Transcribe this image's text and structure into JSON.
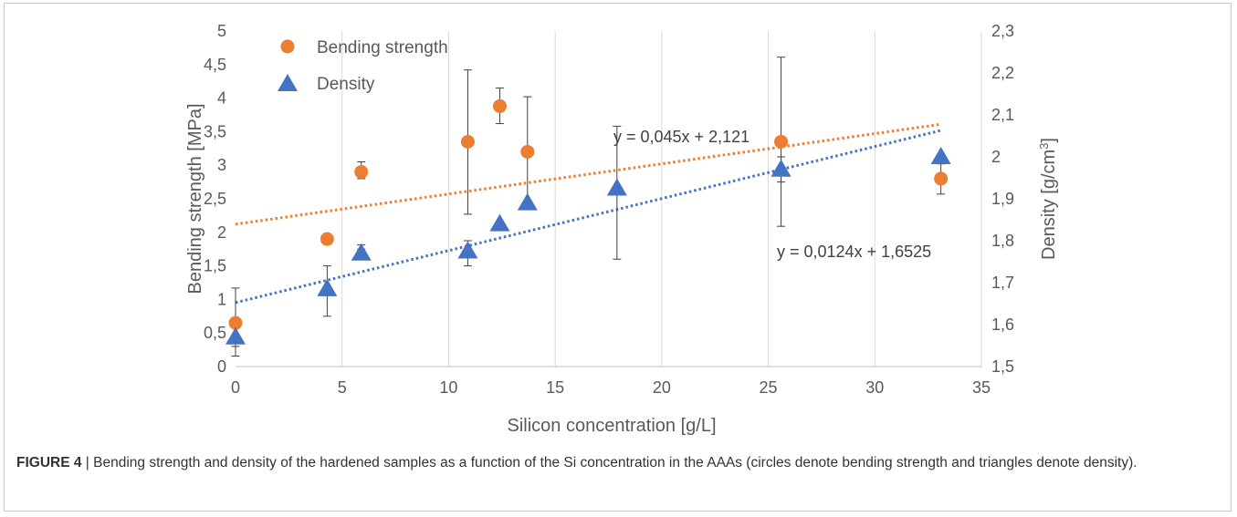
{
  "chart_data": {
    "type": "scatter",
    "xlabel": "Silicon concentration [g/L]",
    "ylabel_left": "Bending strength [MPa]",
    "ylabel_right": "Density [g/cm³]",
    "xlim": [
      0,
      35
    ],
    "ylim_left": [
      0,
      5
    ],
    "ylim_right": [
      1.5,
      2.3
    ],
    "x_ticks": [
      0,
      5,
      10,
      15,
      20,
      25,
      30,
      35
    ],
    "y_left_ticks": [
      "0",
      "0,5",
      "1",
      "1,5",
      "2",
      "2,5",
      "3",
      "3,5",
      "4",
      "4,5",
      "5"
    ],
    "y_right_ticks": [
      "1,5",
      "1,6",
      "1,7",
      "1,8",
      "1,9",
      "2",
      "2,1",
      "2,2",
      "2,3"
    ],
    "grid": "vertical",
    "legend": "top-left",
    "series": [
      {
        "name": "Bending strength",
        "axis": "left",
        "marker": "circle",
        "color": "#ED7D31",
        "x": [
          0,
          4.3,
          5.9,
          10.9,
          12.4,
          13.7,
          25.6,
          33.1
        ],
        "y": [
          0.65,
          1.9,
          2.9,
          3.35,
          3.88,
          3.2,
          3.35,
          2.8
        ],
        "y_low": [
          0.3,
          null,
          2.8,
          2.27,
          3.62,
          2.37,
          2.09,
          2.57
        ],
        "y_high": [
          1.17,
          null,
          3.05,
          4.42,
          4.15,
          4.02,
          4.61,
          3.02
        ]
      },
      {
        "name": "Density",
        "axis": "right",
        "marker": "triangle",
        "color": "#4472C4",
        "x": [
          0,
          4.3,
          5.9,
          10.9,
          12.4,
          13.7,
          17.9,
          25.6,
          33.1
        ],
        "y": [
          1.57,
          1.685,
          1.77,
          1.775,
          1.84,
          1.89,
          1.925,
          1.97,
          2.0
        ],
        "y_low": [
          1.525,
          1.62,
          1.79,
          1.74,
          null,
          null,
          1.756,
          1.94,
          null
        ],
        "y_high": [
          1.6,
          1.74,
          1.78,
          1.8,
          null,
          null,
          2.073,
          2.0,
          null
        ]
      }
    ],
    "trendlines": [
      {
        "series": "Bending strength",
        "label": "y = 0,045x + 2,121",
        "axis": "left",
        "slope": 0.045,
        "intercept": 2.121,
        "color": "#ED7D31"
      },
      {
        "series": "Density",
        "label": "y = 0,0124x + 1,6525",
        "axis": "right",
        "slope": 0.0124,
        "intercept": 1.6525,
        "color": "#4472C4"
      }
    ]
  },
  "caption": {
    "figure_label": "FIGURE 4",
    "separator": " | ",
    "text": "Bending strength and density of the hardened samples as a function of the Si concentration in the AAAs (circles denote bending strength and triangles denote density)."
  }
}
